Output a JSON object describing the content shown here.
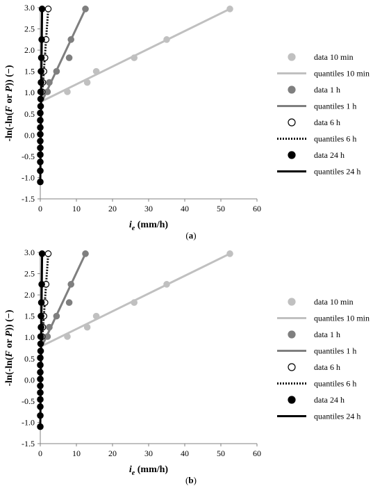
{
  "chart_data": [
    {
      "type": "scatter",
      "panel_label": "a",
      "xlabel_main": "i",
      "xlabel_sub": "e",
      "xlabel_unit": " (mm/h)",
      "ylabel_parts": [
        "-ln(-ln(",
        "F",
        " or ",
        "P",
        ")) (−)"
      ],
      "xlim": [
        0,
        60
      ],
      "ylim": [
        -1.5,
        3.0
      ],
      "xticks": [
        "0",
        "10",
        "20",
        "30",
        "40",
        "50",
        "60"
      ],
      "yticks": [
        "-1.5",
        "-1.0",
        "-0.5",
        "0.0",
        "0.5",
        "1.0",
        "1.5",
        "2.0",
        "2.5",
        "3.0"
      ],
      "grid": false,
      "legend_position": "right",
      "series": [
        {
          "name": "data 10 min",
          "kind": "points",
          "color": "#c0c0c0",
          "fill": true,
          "points": [
            [
              7.5,
              1.02
            ],
            [
              13,
              1.24
            ],
            [
              15.5,
              1.5
            ],
            [
              26,
              1.82
            ],
            [
              35,
              2.25
            ],
            [
              52.5,
              2.97
            ]
          ]
        },
        {
          "name": "quantiles 10 min",
          "kind": "line",
          "color": "#c0c0c0",
          "dash": "",
          "points": [
            [
              0.5,
              0.8
            ],
            [
              52.5,
              2.97
            ]
          ]
        },
        {
          "name": "data 1 h",
          "kind": "points",
          "color": "#7f7f7f",
          "fill": true,
          "points": [
            [
              2,
              1.02
            ],
            [
              2.5,
              1.24
            ],
            [
              4.5,
              1.5
            ],
            [
              8,
              1.82
            ],
            [
              8.5,
              2.25
            ],
            [
              12.5,
              2.97
            ]
          ]
        },
        {
          "name": "quantiles 1 h",
          "kind": "line",
          "color": "#7f7f7f",
          "dash": "",
          "points": [
            [
              0.5,
              0.8
            ],
            [
              12.5,
              2.97
            ]
          ]
        },
        {
          "name": "data 6 h",
          "kind": "points",
          "color": "#000000",
          "fill": false,
          "points": [
            [
              0.5,
              1.02
            ],
            [
              0.7,
              1.24
            ],
            [
              1,
              1.5
            ],
            [
              1.3,
              1.82
            ],
            [
              1.6,
              2.25
            ],
            [
              2.2,
              2.97
            ]
          ]
        },
        {
          "name": "quantiles 6 h",
          "kind": "line",
          "color": "#000000",
          "dash": "2,2",
          "points": [
            [
              0.4,
              0.8
            ],
            [
              2.2,
              2.97
            ]
          ]
        },
        {
          "name": "data 24 h",
          "kind": "points",
          "color": "#000000",
          "fill": true,
          "points": [
            [
              0,
              -1.1
            ],
            [
              0,
              -0.84
            ],
            [
              0,
              -0.63
            ],
            [
              0,
              -0.46
            ],
            [
              0,
              -0.3
            ],
            [
              0,
              -0.14
            ],
            [
              0,
              0.02
            ],
            [
              0,
              0.18
            ],
            [
              0,
              0.35
            ],
            [
              0,
              0.52
            ],
            [
              0.1,
              0.68
            ],
            [
              0.1,
              0.85
            ],
            [
              0.1,
              1.02
            ],
            [
              0.2,
              1.24
            ],
            [
              0.2,
              1.5
            ],
            [
              0.3,
              1.82
            ],
            [
              0.4,
              2.25
            ],
            [
              0.5,
              2.97
            ]
          ]
        },
        {
          "name": "quantiles 24 h",
          "kind": "line",
          "color": "#000000",
          "dash": "",
          "points": [
            [
              0,
              -1.1
            ],
            [
              0.5,
              2.97
            ]
          ]
        }
      ]
    },
    {
      "type": "scatter",
      "panel_label": "b",
      "xlabel_main": "i",
      "xlabel_sub": "e",
      "xlabel_unit": " (mm/h)",
      "ylabel_parts": [
        "-ln(-ln(",
        "F",
        " or ",
        "P",
        ")) (−)"
      ],
      "xlim": [
        0,
        60
      ],
      "ylim": [
        -1.5,
        3.0
      ],
      "xticks": [
        "0",
        "10",
        "20",
        "30",
        "40",
        "50",
        "60"
      ],
      "yticks": [
        "-1.5",
        "-1.0",
        "-0.5",
        "0.0",
        "0.5",
        "1.0",
        "1.5",
        "2.0",
        "2.5",
        "3.0"
      ],
      "grid": false,
      "legend_position": "right",
      "series": [
        {
          "name": "data 10 min",
          "kind": "points",
          "color": "#c0c0c0",
          "fill": true,
          "points": [
            [
              7.5,
              1.02
            ],
            [
              13,
              1.24
            ],
            [
              15.5,
              1.5
            ],
            [
              26,
              1.82
            ],
            [
              35,
              2.25
            ],
            [
              52.5,
              2.97
            ]
          ]
        },
        {
          "name": "quantiles 10 min",
          "kind": "line",
          "color": "#c0c0c0",
          "dash": "",
          "points": [
            [
              0.5,
              0.8
            ],
            [
              52.5,
              2.97
            ]
          ]
        },
        {
          "name": "data 1 h",
          "kind": "points",
          "color": "#7f7f7f",
          "fill": true,
          "points": [
            [
              2,
              1.02
            ],
            [
              2.5,
              1.24
            ],
            [
              4.5,
              1.5
            ],
            [
              8,
              1.82
            ],
            [
              8.5,
              2.25
            ],
            [
              12.5,
              2.97
            ]
          ]
        },
        {
          "name": "quantiles 1 h",
          "kind": "line",
          "color": "#7f7f7f",
          "dash": "",
          "points": [
            [
              0.5,
              0.8
            ],
            [
              12.5,
              2.97
            ]
          ]
        },
        {
          "name": "data 6 h",
          "kind": "points",
          "color": "#000000",
          "fill": false,
          "points": [
            [
              0.5,
              1.02
            ],
            [
              0.7,
              1.24
            ],
            [
              1,
              1.5
            ],
            [
              1.3,
              1.82
            ],
            [
              1.6,
              2.25
            ],
            [
              2.2,
              2.97
            ]
          ]
        },
        {
          "name": "quantiles 6 h",
          "kind": "line",
          "color": "#000000",
          "dash": "2,2",
          "points": [
            [
              0.4,
              0.8
            ],
            [
              2.2,
              2.97
            ]
          ]
        },
        {
          "name": "data 24 h",
          "kind": "points",
          "color": "#000000",
          "fill": true,
          "points": [
            [
              0,
              -1.1
            ],
            [
              0,
              -0.84
            ],
            [
              0,
              -0.63
            ],
            [
              0,
              -0.46
            ],
            [
              0,
              -0.3
            ],
            [
              0,
              -0.14
            ],
            [
              0,
              0.02
            ],
            [
              0,
              0.18
            ],
            [
              0,
              0.35
            ],
            [
              0,
              0.52
            ],
            [
              0.1,
              0.68
            ],
            [
              0.1,
              0.85
            ],
            [
              0.1,
              1.02
            ],
            [
              0.2,
              1.24
            ],
            [
              0.2,
              1.5
            ],
            [
              0.3,
              1.82
            ],
            [
              0.4,
              2.25
            ],
            [
              0.5,
              2.97
            ]
          ]
        },
        {
          "name": "quantiles 24 h",
          "kind": "line",
          "color": "#000000",
          "dash": "",
          "points": [
            [
              0,
              -1.1
            ],
            [
              0.5,
              2.97
            ]
          ]
        }
      ]
    }
  ]
}
